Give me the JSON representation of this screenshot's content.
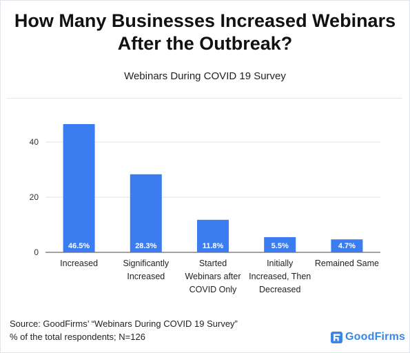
{
  "header": {
    "title_line1": "How Many Businesses Increased Webinars",
    "title_line2": "After the Outbreak?"
  },
  "chart_data": {
    "type": "bar",
    "title": "Webinars During COVID 19 Survey",
    "xlabel": "",
    "ylabel": "",
    "categories": [
      [
        "Increased"
      ],
      [
        "Significantly",
        "Increased"
      ],
      [
        "Started",
        "Webinars after",
        "COVID Only"
      ],
      [
        "Initially",
        "Increased, Then",
        "Decreased"
      ],
      [
        "Remained Same"
      ]
    ],
    "values": [
      46.5,
      28.3,
      11.8,
      5.5,
      4.7
    ],
    "data_labels": [
      "46.5%",
      "28.3%",
      "11.8%",
      "5.5%",
      "4.7%"
    ],
    "yticks": [
      0,
      20,
      40
    ],
    "ylim": [
      0,
      50
    ],
    "grid": true,
    "bar_color": "#3b7df0",
    "grid_color": "#e3e3e3",
    "label_color": "#ffffff"
  },
  "footer": {
    "source_line1": "Source: GoodFirms’ “Webinars During COVID 19 Survey”",
    "source_line2": "% of the total respondents; N=126",
    "logo_text": "GoodFirms",
    "logo_icon": "goodfirms-logo-icon",
    "logo_color": "#3a86e6"
  }
}
